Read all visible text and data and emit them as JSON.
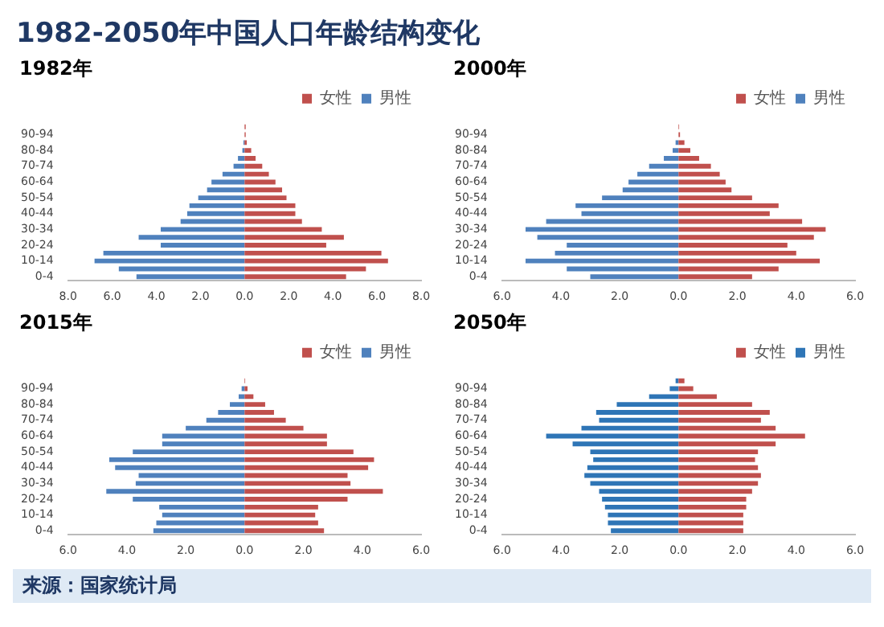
{
  "chart_data": [
    {
      "type": "other",
      "title": "1982-2050年中国人口年龄结构变化",
      "annotations": [
        "来源：国家统计局"
      ]
    },
    {
      "type": "bar",
      "title": "1982年",
      "orientation": "horizontal",
      "stacked": true,
      "legend": "top right",
      "categories": [
        null,
        "90-94",
        null,
        "80-84",
        null,
        "70-74",
        null,
        "60-64",
        null,
        "50-54",
        null,
        "40-44",
        null,
        "30-34",
        null,
        "20-24",
        null,
        "10-14",
        null,
        "0-4"
      ],
      "xlim": [
        -8,
        8
      ],
      "xticks": [
        {
          "value": -8,
          "label": "8.0"
        },
        {
          "value": -6,
          "label": "6.0"
        },
        {
          "value": -4,
          "label": "4.0"
        },
        {
          "value": -2,
          "label": "2.0"
        },
        {
          "value": 0,
          "label": "0.0"
        },
        {
          "value": 2,
          "label": "2.0"
        },
        {
          "value": 4,
          "label": "4.0"
        },
        {
          "value": 6,
          "label": "6.0"
        },
        {
          "value": 8,
          "label": "8.0"
        }
      ],
      "series": [
        {
          "name": "女性",
          "color": "#c0504d",
          "values": [
            0.05,
            0.05,
            0.1,
            0.3,
            0.5,
            0.8,
            1.1,
            1.4,
            1.7,
            1.9,
            2.3,
            2.3,
            2.6,
            3.5,
            4.5,
            3.7,
            6.2,
            6.5,
            5.5,
            4.6
          ]
        },
        {
          "name": "男性",
          "color": "#4f81bd",
          "values": [
            0,
            0,
            -0.05,
            -0.1,
            -0.3,
            -0.5,
            -1.0,
            -1.5,
            -1.7,
            -2.1,
            -2.5,
            -2.6,
            -2.9,
            -3.8,
            -4.8,
            -3.8,
            -6.4,
            -6.8,
            -5.7,
            -4.9
          ]
        }
      ]
    },
    {
      "type": "bar",
      "title": "2000年",
      "orientation": "horizontal",
      "stacked": true,
      "legend": "top right",
      "categories": [
        null,
        "90-94",
        null,
        "80-84",
        null,
        "70-74",
        null,
        "60-64",
        null,
        "50-54",
        null,
        "40-44",
        null,
        "30-34",
        null,
        "20-24",
        null,
        "10-14",
        null,
        "0-4"
      ],
      "xlim": [
        -6,
        6
      ],
      "xticks": [
        {
          "value": -6,
          "label": "6.0"
        },
        {
          "value": -4,
          "label": "4.0"
        },
        {
          "value": -2,
          "label": "2.0"
        },
        {
          "value": 0,
          "label": "0.0"
        },
        {
          "value": 2,
          "label": "2.0"
        },
        {
          "value": 4,
          "label": "4.0"
        },
        {
          "value": 6,
          "label": "6.0"
        }
      ],
      "series": [
        {
          "name": "女性",
          "color": "#c0504d",
          "values": [
            0.02,
            0.05,
            0.2,
            0.4,
            0.7,
            1.1,
            1.4,
            1.6,
            1.8,
            2.5,
            3.4,
            3.1,
            4.2,
            5.0,
            4.6,
            3.7,
            4.0,
            4.8,
            3.4,
            2.5
          ]
        },
        {
          "name": "男性",
          "color": "#4f81bd",
          "values": [
            0,
            0,
            -0.1,
            -0.2,
            -0.5,
            -1.0,
            -1.4,
            -1.7,
            -1.9,
            -2.6,
            -3.5,
            -3.3,
            -4.5,
            -5.2,
            -4.8,
            -3.8,
            -4.2,
            -5.2,
            -3.8,
            -3.0
          ]
        }
      ]
    },
    {
      "type": "bar",
      "title": "2015年",
      "orientation": "horizontal",
      "stacked": true,
      "legend": "top right",
      "categories": [
        null,
        "90-94",
        null,
        "80-84",
        null,
        "70-74",
        null,
        "60-64",
        null,
        "50-54",
        null,
        "40-44",
        null,
        "30-34",
        null,
        "20-24",
        null,
        "10-14",
        null,
        "0-4"
      ],
      "xlim": [
        -6,
        6
      ],
      "xticks": [
        {
          "value": -6,
          "label": "6.0"
        },
        {
          "value": -4,
          "label": "4.0"
        },
        {
          "value": -2,
          "label": "2.0"
        },
        {
          "value": 0,
          "label": "0.0"
        },
        {
          "value": 2,
          "label": "2.0"
        },
        {
          "value": 4,
          "label": "4.0"
        },
        {
          "value": 6,
          "label": "6.0"
        }
      ],
      "series": [
        {
          "name": "女性",
          "color": "#c0504d",
          "values": [
            0.02,
            0.1,
            0.3,
            0.7,
            1.0,
            1.4,
            2.0,
            2.8,
            2.8,
            3.7,
            4.4,
            4.2,
            3.5,
            3.6,
            4.7,
            3.5,
            2.5,
            2.4,
            2.5,
            2.7
          ]
        },
        {
          "name": "男性",
          "color": "#4f81bd",
          "values": [
            0,
            -0.1,
            -0.2,
            -0.5,
            -0.9,
            -1.3,
            -2.0,
            -2.8,
            -2.8,
            -3.8,
            -4.6,
            -4.4,
            -3.6,
            -3.7,
            -4.7,
            -3.8,
            -2.9,
            -2.8,
            -3.0,
            -3.1
          ]
        }
      ]
    },
    {
      "type": "bar",
      "title": "2050年",
      "orientation": "horizontal",
      "stacked": true,
      "legend": "top right",
      "categories": [
        null,
        "90-94",
        null,
        "80-84",
        null,
        "70-74",
        null,
        "60-64",
        null,
        "50-54",
        null,
        "40-44",
        null,
        "30-34",
        null,
        "20-24",
        null,
        "10-14",
        null,
        "0-4"
      ],
      "xlim": [
        -6,
        6
      ],
      "xticks": [
        {
          "value": -6,
          "label": "6.0"
        },
        {
          "value": -4,
          "label": "4.0"
        },
        {
          "value": -2,
          "label": "2.0"
        },
        {
          "value": 0,
          "label": "0.0"
        },
        {
          "value": 2,
          "label": "2.0"
        },
        {
          "value": 4,
          "label": "4.0"
        },
        {
          "value": 6,
          "label": "6.0"
        }
      ],
      "series": [
        {
          "name": "女性",
          "color": "#c0504d",
          "values": [
            0.2,
            0.5,
            1.3,
            2.5,
            3.1,
            2.8,
            3.3,
            4.3,
            3.3,
            2.7,
            2.6,
            2.7,
            2.8,
            2.7,
            2.5,
            2.3,
            2.3,
            2.2,
            2.2,
            2.2
          ]
        },
        {
          "name": "男性",
          "color": "#2e75b6",
          "values": [
            -0.1,
            -0.3,
            -1.0,
            -2.1,
            -2.8,
            -2.7,
            -3.3,
            -4.5,
            -3.6,
            -3.0,
            -2.9,
            -3.1,
            -3.2,
            -3.0,
            -2.7,
            -2.6,
            -2.5,
            -2.4,
            -2.4,
            -2.3
          ]
        }
      ]
    }
  ]
}
